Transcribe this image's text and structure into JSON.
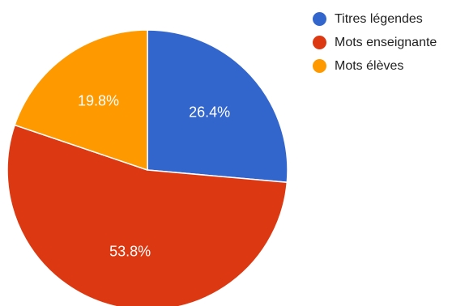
{
  "chart_data": {
    "type": "pie",
    "slices": [
      {
        "label": "Titres légendes",
        "value": 26.4,
        "value_label": "26.4%",
        "color": "#3366cc"
      },
      {
        "label": "Mots enseignante",
        "value": 53.8,
        "value_label": "53.8%",
        "color": "#dc3912"
      },
      {
        "label": "Mots élèves",
        "value": 19.8,
        "value_label": "19.8%",
        "color": "#ff9900"
      }
    ],
    "start_angle": "12 o'clock",
    "direction": "clockwise",
    "legend_position": "right"
  }
}
